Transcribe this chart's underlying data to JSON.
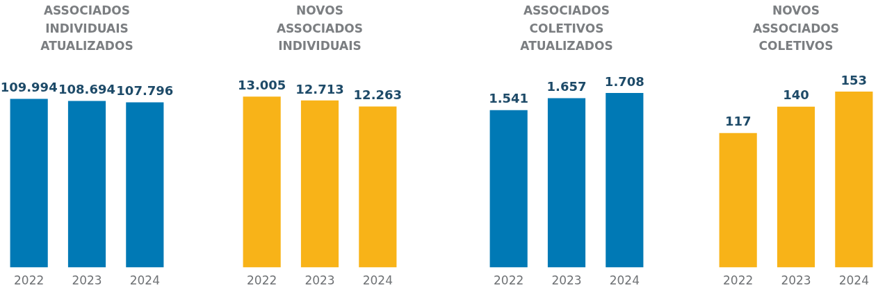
{
  "chart_data": [
    {
      "type": "bar",
      "title": "ASSOCIADOS INDIVIDUAIS ATUALIZADOS",
      "categories": [
        "2022",
        "2023",
        "2024"
      ],
      "values": [
        109994,
        108694,
        107796
      ],
      "value_labels": [
        "109.994",
        "108.694",
        "107.796"
      ],
      "color": "#0079b5"
    },
    {
      "type": "bar",
      "title": "NOVOS ASSOCIADOS INDIVIDUAIS",
      "categories": [
        "2022",
        "2023",
        "2024"
      ],
      "values": [
        13005,
        12713,
        12263
      ],
      "value_labels": [
        "13.005",
        "12.713",
        "12.263"
      ],
      "color": "#f8b318"
    },
    {
      "type": "bar",
      "title": "ASSOCIADOS COLETIVOS ATUALIZADOS",
      "categories": [
        "2022",
        "2023",
        "2024"
      ],
      "values": [
        1541,
        1657,
        1708
      ],
      "value_labels": [
        "1.541",
        "1.657",
        "1.708"
      ],
      "color": "#0079b5"
    },
    {
      "type": "bar",
      "title": "NOVOS ASSOCIADOS COLETIVOS",
      "categories": [
        "2022",
        "2023",
        "2024"
      ],
      "values": [
        117,
        140,
        153
      ],
      "value_labels": [
        "117",
        "140",
        "153"
      ],
      "color": "#f8b318"
    }
  ]
}
